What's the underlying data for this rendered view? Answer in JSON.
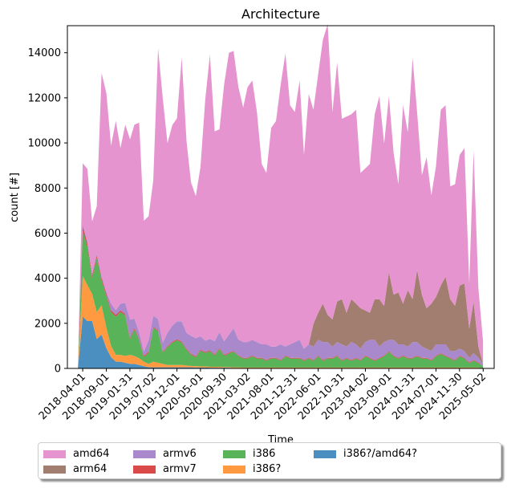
{
  "chart_data": {
    "type": "area",
    "title": "Architecture",
    "xlabel": "Time",
    "ylabel": "count [#]",
    "ylim": [
      0,
      15200
    ],
    "yticks": [
      0,
      2000,
      4000,
      6000,
      8000,
      10000,
      12000,
      14000
    ],
    "ytick_labels": [
      "0",
      "2000",
      "4000",
      "6000",
      "8000",
      "10000",
      "12000",
      "14000"
    ],
    "xlim": [
      "2017-12-23",
      "2025-07-12"
    ],
    "x_ticks": [
      "2018-04-01",
      "2018-09-01",
      "2019-01-31",
      "2019-07-02",
      "2019-12-01",
      "2020-05-01",
      "2020-09-30",
      "2021-03-02",
      "2021-08-01",
      "2021-12-31",
      "2022-06-01",
      "2022-10-31",
      "2023-04-02",
      "2023-09-01",
      "2024-01-31",
      "2024-07-01",
      "2024-11-30",
      "2025-05-02"
    ],
    "grid": false,
    "stacked": true,
    "legend_position": "below",
    "legend_columns": 5,
    "x": [
      "2018-03-01",
      "2018-04-01",
      "2018-05-01",
      "2018-06-01",
      "2018-07-01",
      "2018-08-01",
      "2018-09-01",
      "2018-10-01",
      "2018-11-01",
      "2018-12-01",
      "2019-01-01",
      "2019-02-01",
      "2019-03-01",
      "2019-04-01",
      "2019-05-01",
      "2019-06-01",
      "2019-07-01",
      "2019-08-01",
      "2019-09-01",
      "2019-10-01",
      "2019-11-01",
      "2019-12-01",
      "2020-01-01",
      "2020-02-01",
      "2020-03-01",
      "2020-04-01",
      "2020-05-01",
      "2020-06-01",
      "2020-07-01",
      "2020-08-01",
      "2020-09-01",
      "2020-10-01",
      "2020-11-01",
      "2020-12-01",
      "2021-01-01",
      "2021-02-01",
      "2021-03-01",
      "2021-04-01",
      "2021-05-01",
      "2021-06-01",
      "2021-07-01",
      "2021-08-01",
      "2021-09-01",
      "2021-10-01",
      "2021-11-01",
      "2021-12-01",
      "2022-01-01",
      "2022-02-01",
      "2022-03-01",
      "2022-04-01",
      "2022-05-01",
      "2022-06-01",
      "2022-07-01",
      "2022-08-01",
      "2022-09-01",
      "2022-10-01",
      "2022-11-01",
      "2022-12-01",
      "2023-01-01",
      "2023-02-01",
      "2023-03-01",
      "2023-04-01",
      "2023-05-01",
      "2023-06-01",
      "2023-07-01",
      "2023-08-01",
      "2023-09-01",
      "2023-10-01",
      "2023-11-01",
      "2023-12-01",
      "2024-01-01",
      "2024-02-01",
      "2024-03-01",
      "2024-04-01",
      "2024-05-01",
      "2024-06-01",
      "2024-07-01",
      "2024-08-01",
      "2024-09-01",
      "2024-10-01",
      "2024-11-01",
      "2024-12-01",
      "2025-01-01",
      "2025-02-01",
      "2025-03-01",
      "2025-04-01",
      "2025-05-01"
    ],
    "series": [
      {
        "name": "i386?/amd64?",
        "color": "#4a8fc0",
        "values": [
          0,
          2300,
          2100,
          2100,
          1300,
          1500,
          900,
          500,
          300,
          300,
          250,
          200,
          200,
          150,
          100,
          50,
          50,
          50,
          50,
          50,
          50,
          50,
          50,
          50,
          50,
          40,
          40,
          40,
          30,
          30,
          30,
          30,
          30,
          20,
          20,
          20,
          20,
          20,
          20,
          20,
          20,
          20,
          20,
          20,
          20,
          20,
          20,
          20,
          20,
          20,
          20,
          20,
          20,
          20,
          20,
          20,
          20,
          20,
          20,
          20,
          20,
          20,
          20,
          20,
          20,
          20,
          20,
          20,
          20,
          20,
          20,
          20,
          20,
          20,
          20,
          20,
          20,
          20,
          20,
          20,
          20,
          20,
          20,
          20,
          20,
          20,
          0
        ]
      },
      {
        "name": "i386?",
        "color": "#ff9a40",
        "values": [
          0,
          1800,
          1600,
          1200,
          1200,
          1300,
          900,
          500,
          300,
          300,
          300,
          400,
          350,
          300,
          200,
          150,
          250,
          200,
          150,
          100,
          100,
          100,
          100,
          80,
          60,
          60,
          50,
          50,
          40,
          40,
          40,
          30,
          30,
          30,
          30,
          20,
          20,
          20,
          20,
          20,
          20,
          20,
          20,
          20,
          20,
          20,
          20,
          20,
          20,
          20,
          20,
          20,
          20,
          20,
          20,
          20,
          20,
          20,
          20,
          20,
          20,
          20,
          20,
          20,
          20,
          20,
          20,
          20,
          20,
          20,
          20,
          20,
          20,
          20,
          20,
          20,
          20,
          20,
          20,
          20,
          20,
          20,
          20,
          20,
          20,
          20,
          0
        ]
      },
      {
        "name": "i386",
        "color": "#59b359",
        "values": [
          0,
          2000,
          1700,
          700,
          2400,
          1100,
          1400,
          1500,
          1700,
          1900,
          1800,
          700,
          1200,
          800,
          200,
          500,
          1500,
          1400,
          500,
          800,
          1000,
          1100,
          1000,
          700,
          500,
          400,
          700,
          600,
          700,
          500,
          800,
          500,
          600,
          700,
          500,
          400,
          400,
          500,
          400,
          400,
          300,
          400,
          400,
          300,
          500,
          400,
          400,
          400,
          300,
          400,
          300,
          500,
          300,
          400,
          400,
          500,
          300,
          400,
          300,
          400,
          300,
          500,
          400,
          300,
          400,
          500,
          700,
          500,
          400,
          500,
          400,
          400,
          500,
          400,
          400,
          300,
          500,
          600,
          500,
          400,
          300,
          500,
          400,
          200,
          300,
          200,
          100
        ]
      },
      {
        "name": "armv7",
        "color": "#d94a48",
        "values": [
          0,
          200,
          150,
          120,
          100,
          100,
          100,
          80,
          80,
          70,
          60,
          60,
          60,
          50,
          50,
          50,
          40,
          40,
          40,
          40,
          40,
          40,
          40,
          40,
          40,
          40,
          40,
          40,
          40,
          40,
          40,
          40,
          40,
          30,
          30,
          30,
          30,
          30,
          30,
          30,
          30,
          30,
          30,
          30,
          30,
          30,
          30,
          30,
          30,
          30,
          30,
          30,
          30,
          30,
          30,
          30,
          30,
          30,
          30,
          30,
          30,
          30,
          30,
          30,
          30,
          30,
          30,
          30,
          30,
          30,
          30,
          30,
          30,
          30,
          30,
          30,
          30,
          30,
          30,
          30,
          30,
          30,
          30,
          30,
          30,
          30,
          0
        ]
      },
      {
        "name": "armv6",
        "color": "#a989cc",
        "values": [
          0,
          100,
          100,
          100,
          100,
          100,
          100,
          300,
          200,
          300,
          500,
          800,
          400,
          300,
          200,
          500,
          500,
          500,
          400,
          600,
          700,
          800,
          900,
          700,
          800,
          800,
          600,
          500,
          500,
          600,
          700,
          600,
          800,
          1000,
          700,
          700,
          700,
          700,
          700,
          600,
          700,
          500,
          500,
          700,
          400,
          600,
          700,
          800,
          500,
          600,
          600,
          700,
          800,
          700,
          500,
          600,
          700,
          500,
          800,
          600,
          500,
          600,
          800,
          900,
          500,
          600,
          500,
          700,
          600,
          500,
          500,
          700,
          600,
          500,
          400,
          400,
          500,
          400,
          500,
          300,
          400,
          300,
          300,
          200,
          300,
          200,
          100
        ]
      },
      {
        "name": "arm64",
        "color": "#a27e70",
        "values": [
          0,
          0,
          0,
          0,
          0,
          0,
          0,
          0,
          0,
          0,
          0,
          0,
          0,
          0,
          0,
          0,
          0,
          0,
          0,
          0,
          0,
          0,
          0,
          0,
          0,
          0,
          0,
          0,
          0,
          0,
          0,
          0,
          0,
          0,
          0,
          0,
          0,
          0,
          0,
          0,
          0,
          0,
          0,
          0,
          0,
          0,
          0,
          0,
          0,
          0,
          1000,
          1200,
          1700,
          1200,
          1200,
          1800,
          2000,
          1500,
          1900,
          1800,
          1800,
          1400,
          1200,
          1800,
          2100,
          1600,
          3000,
          2000,
          2300,
          1800,
          2500,
          1900,
          3200,
          2300,
          1800,
          2100,
          2100,
          2600,
          3000,
          2300,
          2000,
          2800,
          3000,
          1300,
          2300,
          500,
          0
        ]
      },
      {
        "name": "amd64",
        "color": "#e694cf",
        "values": [
          0,
          2700,
          3200,
          2300,
          2100,
          9000,
          8800,
          7000,
          8400,
          6900,
          7900,
          8000,
          8600,
          9300,
          5800,
          5500,
          6000,
          12000,
          10800,
          8400,
          8900,
          9000,
          11700,
          8500,
          6800,
          6300,
          7500,
          10700,
          12600,
          9300,
          9000,
          11400,
          12500,
          12300,
          11200,
          10400,
          11300,
          11500,
          10200,
          8000,
          7600,
          9700,
          10000,
          11500,
          13000,
          10600,
          10200,
          11500,
          8600,
          11100,
          9500,
          10600,
          11700,
          12900,
          9200,
          10600,
          8000,
          8700,
          8200,
          8600,
          6000,
          6300,
          6600,
          8200,
          9000,
          7200,
          7800,
          6300,
          4800,
          8800,
          7000,
          10700,
          7000,
          5300,
          6700,
          4800,
          5800,
          7800,
          7600,
          5000,
          5400,
          5800,
          6000,
          2000,
          6700,
          2600,
          1000
        ]
      }
    ],
    "legend": [
      {
        "name": "amd64",
        "color": "#e694cf"
      },
      {
        "name": "arm64",
        "color": "#a27e70"
      },
      {
        "name": "armv6",
        "color": "#a989cc"
      },
      {
        "name": "armv7",
        "color": "#d94a48"
      },
      {
        "name": "i386",
        "color": "#59b359"
      },
      {
        "name": "i386?",
        "color": "#ff9a40"
      },
      {
        "name": "i386?/amd64?",
        "color": "#4a8fc0"
      }
    ]
  }
}
